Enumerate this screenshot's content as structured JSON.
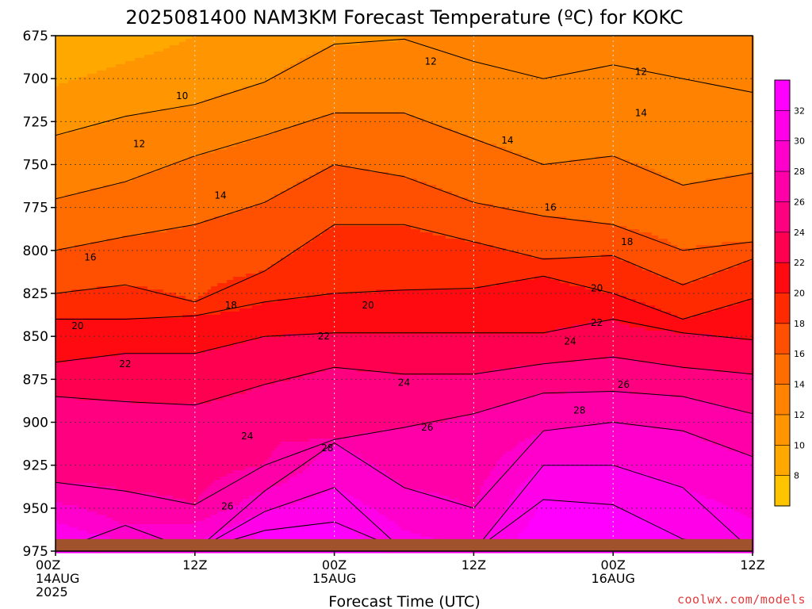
{
  "chart_data": {
    "type": "heatmap",
    "title": "2025081400 NAM3KM Forecast Temperature (ºC) for KOKC",
    "xlabel": "Forecast Time (UTC)",
    "ylabel": "",
    "credit": "coolwx.com/models",
    "y_axis": {
      "unit": "hPa",
      "inverted": true,
      "range": [
        675,
        975
      ],
      "ticks": [
        "675",
        "700",
        "725",
        "750",
        "775",
        "800",
        "825",
        "850",
        "875",
        "900",
        "925",
        "950",
        "975"
      ]
    },
    "x_axis": {
      "unit": "hours from 2025081400",
      "range": [
        0,
        60
      ],
      "ticks": [
        {
          "hour": 0,
          "lines": [
            "00Z",
            "14AUG",
            "2025"
          ]
        },
        {
          "hour": 12,
          "lines": [
            "12Z"
          ]
        },
        {
          "hour": 24,
          "lines": [
            "00Z",
            "15AUG"
          ]
        },
        {
          "hour": 36,
          "lines": [
            "12Z"
          ]
        },
        {
          "hour": 48,
          "lines": [
            "00Z",
            "16AUG"
          ]
        },
        {
          "hour": 60,
          "lines": [
            "12Z"
          ]
        }
      ]
    },
    "grid": true,
    "ground": {
      "pressure_top": 968,
      "color": "#a0522d"
    },
    "colorbar": {
      "placement": "right",
      "unit": "ºC",
      "levels": [
        6,
        8,
        10,
        12,
        14,
        16,
        18,
        20,
        22,
        24,
        26,
        28,
        30,
        32,
        34
      ],
      "tick_labels": [
        "8",
        "10",
        "12",
        "14",
        "16",
        "18",
        "20",
        "22",
        "24",
        "26",
        "28",
        "30",
        "32"
      ],
      "colors": [
        "#ffc400",
        "#ffa800",
        "#ff9500",
        "#ff8200",
        "#ff6c00",
        "#ff4f00",
        "#ff2a00",
        "#ff0a10",
        "#ff0050",
        "#ff0080",
        "#ff00a8",
        "#ff00cc",
        "#ff00e8",
        "#ff00ff"
      ]
    },
    "hours": [
      0,
      6,
      12,
      18,
      24,
      30,
      36,
      42,
      48,
      54,
      60
    ],
    "series": [
      {
        "isotherm": 12,
        "pressure": [
          733,
          722,
          715,
          702,
          680,
          677,
          690,
          700,
          692,
          700,
          708
        ]
      },
      {
        "isotherm": 14,
        "pressure": [
          770,
          760,
          745,
          733,
          720,
          720,
          735,
          750,
          745,
          762,
          755
        ]
      },
      {
        "isotherm": 16,
        "pressure": [
          800,
          792,
          785,
          772,
          750,
          757,
          772,
          780,
          785,
          800,
          795
        ]
      },
      {
        "isotherm": 18,
        "pressure": [
          825,
          820,
          830,
          812,
          785,
          785,
          795,
          805,
          803,
          820,
          805
        ]
      },
      {
        "isotherm": 20,
        "pressure": [
          840,
          840,
          838,
          830,
          825,
          823,
          822,
          815,
          825,
          840,
          828
        ]
      },
      {
        "isotherm": 22,
        "pressure": [
          865,
          860,
          860,
          850,
          848,
          848,
          848,
          848,
          840,
          848,
          852
        ]
      },
      {
        "isotherm": 24,
        "pressure": [
          885,
          888,
          890,
          878,
          868,
          872,
          872,
          866,
          862,
          868,
          872
        ]
      },
      {
        "isotherm": 26,
        "pressure": [
          935,
          940,
          948,
          925,
          910,
          903,
          895,
          883,
          882,
          885,
          895
        ]
      },
      {
        "isotherm": 28,
        "pressure": [
          975,
          960,
          975,
          940,
          912,
          938,
          950,
          905,
          900,
          905,
          920
        ]
      },
      {
        "isotherm": 30,
        "pressure": [
          975,
          975,
          975,
          952,
          938,
          975,
          975,
          925,
          925,
          938,
          975
        ]
      },
      {
        "isotherm": 32,
        "pressure": [
          975,
          975,
          975,
          963,
          958,
          975,
          975,
          945,
          948,
          968,
          975
        ]
      }
    ],
    "top_temperature": [
      8,
      9,
      10,
      11,
      11,
      12,
      12,
      12,
      12,
      12,
      12
    ],
    "surface_temperature": [
      33,
      31,
      31,
      33,
      34,
      31,
      30,
      34,
      34,
      33,
      31
    ],
    "contour_labels": [
      {
        "text": "10",
        "hour": 10.9,
        "pressure": 710
      },
      {
        "text": "12",
        "hour": 7.2,
        "pressure": 738
      },
      {
        "text": "12",
        "hour": 32.3,
        "pressure": 690
      },
      {
        "text": "12",
        "hour": 50.4,
        "pressure": 696
      },
      {
        "text": "14",
        "hour": 14.2,
        "pressure": 768
      },
      {
        "text": "14",
        "hour": 38.9,
        "pressure": 736
      },
      {
        "text": "14",
        "hour": 50.4,
        "pressure": 720
      },
      {
        "text": "16",
        "hour": 3.0,
        "pressure": 804
      },
      {
        "text": "16",
        "hour": 42.6,
        "pressure": 775
      },
      {
        "text": "18",
        "hour": 15.1,
        "pressure": 832
      },
      {
        "text": "18",
        "hour": 49.2,
        "pressure": 795
      },
      {
        "text": "20",
        "hour": 1.9,
        "pressure": 844
      },
      {
        "text": "20",
        "hour": 26.9,
        "pressure": 832
      },
      {
        "text": "20",
        "hour": 46.6,
        "pressure": 822
      },
      {
        "text": "22",
        "hour": 6.0,
        "pressure": 866
      },
      {
        "text": "22",
        "hour": 23.1,
        "pressure": 850
      },
      {
        "text": "22",
        "hour": 46.6,
        "pressure": 842
      },
      {
        "text": "24",
        "hour": 16.5,
        "pressure": 908
      },
      {
        "text": "24",
        "hour": 30.0,
        "pressure": 877
      },
      {
        "text": "24",
        "hour": 44.3,
        "pressure": 853
      },
      {
        "text": "26",
        "hour": 14.8,
        "pressure": 949
      },
      {
        "text": "26",
        "hour": 32.0,
        "pressure": 903
      },
      {
        "text": "26",
        "hour": 48.9,
        "pressure": 878
      },
      {
        "text": "28",
        "hour": 23.4,
        "pressure": 915
      },
      {
        "text": "28",
        "hour": 45.1,
        "pressure": 893
      }
    ]
  }
}
